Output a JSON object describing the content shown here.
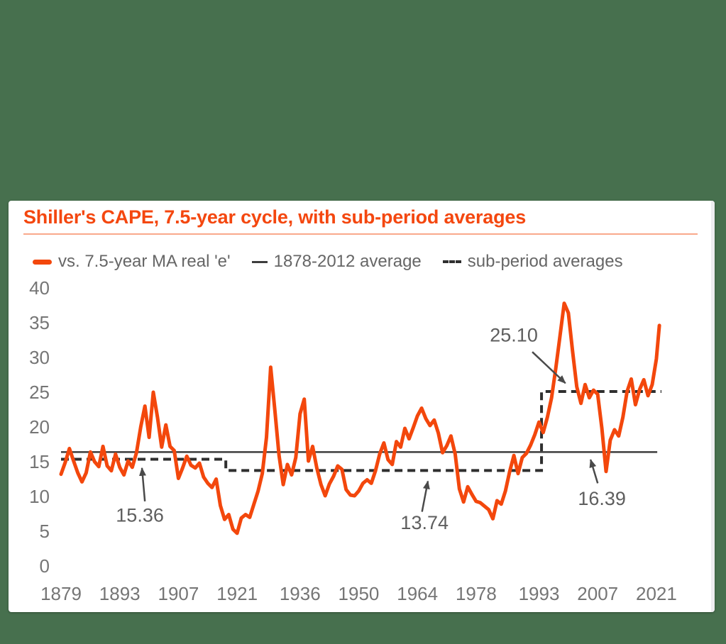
{
  "page": {
    "background_color": "#47704E",
    "card_background": "#FFFFFF",
    "scroll_strip_color": "#EDEDF0"
  },
  "header": {
    "title": "Shiller's CAPE, 7.5-year cycle, with sub-period averages",
    "title_color": "#F4470F",
    "underline_color": "#F9A98B"
  },
  "legend": {
    "text_color": "#666666",
    "items": [
      {
        "label": "vs. 7.5-year MA real 'e'",
        "swatch": "thick-orange-dash",
        "color": "#F3470C"
      },
      {
        "label": "1878-2012 average",
        "swatch": "thin-solid-dash",
        "color": "#3D3D3D"
      },
      {
        "label": "sub-period averages",
        "swatch": "dashed-dash",
        "color": "#2F2F2F"
      }
    ]
  },
  "chart_data": {
    "type": "line",
    "title": "Shiller's CAPE, 7.5-year cycle, with sub-period averages",
    "xlabel": "",
    "ylabel": "",
    "grid": false,
    "legend_position": "top",
    "ylim": [
      0,
      40
    ],
    "xlim": [
      1879,
      2022.3
    ],
    "y_ticks": [
      0,
      5,
      10,
      15,
      20,
      25,
      30,
      35,
      40
    ],
    "x_ticks": [
      1879,
      1893,
      1907,
      1921,
      1936,
      1950,
      1964,
      1978,
      1993,
      2007,
      2021
    ],
    "tick_color": "#757575",
    "series": [
      {
        "name": "vs. 7.5-year MA real 'e'",
        "style": "solid",
        "color": "#F3470C",
        "x": [
          1879,
          1880,
          1881,
          1882,
          1883,
          1884,
          1885,
          1886,
          1887,
          1888,
          1889,
          1890,
          1891,
          1892,
          1893,
          1894,
          1895,
          1896,
          1897,
          1898,
          1899,
          1900,
          1901,
          1902,
          1903,
          1904,
          1905,
          1906,
          1907,
          1908,
          1909,
          1910,
          1911,
          1912,
          1913,
          1914,
          1915,
          1916,
          1917,
          1918,
          1919,
          1920,
          1921,
          1922,
          1923,
          1924,
          1925,
          1926,
          1927,
          1928,
          1929,
          1930,
          1931,
          1932,
          1933,
          1934,
          1935,
          1936,
          1937,
          1938,
          1939,
          1940,
          1941,
          1942,
          1943,
          1944,
          1945,
          1946,
          1947,
          1948,
          1949,
          1950,
          1951,
          1952,
          1953,
          1954,
          1955,
          1956,
          1957,
          1958,
          1959,
          1960,
          1961,
          1962,
          1963,
          1964,
          1965,
          1966,
          1967,
          1968,
          1969,
          1970,
          1971,
          1972,
          1973,
          1974,
          1975,
          1976,
          1977,
          1978,
          1979,
          1980,
          1981,
          1982,
          1983,
          1984,
          1985,
          1986,
          1987,
          1988,
          1989,
          1990,
          1991,
          1992,
          1993,
          1994,
          1995,
          1996,
          1997,
          1998,
          1999,
          2000,
          2001,
          2002,
          2003,
          2004,
          2005,
          2006,
          2007,
          2008,
          2009,
          2010,
          2011,
          2012,
          2013,
          2014,
          2015,
          2016,
          2017,
          2018,
          2019,
          2020,
          2021,
          2021.7
        ],
        "values": [
          13.2,
          14.9,
          16.9,
          15.1,
          13.4,
          12.1,
          13.4,
          16.4,
          15.0,
          14.3,
          17.2,
          14.4,
          13.7,
          16.1,
          14.2,
          13.1,
          15.1,
          14.2,
          16.3,
          20.0,
          23.0,
          18.5,
          25.0,
          21.4,
          17.1,
          20.3,
          17.2,
          16.6,
          12.6,
          14.1,
          15.8,
          14.5,
          14.1,
          14.8,
          12.8,
          11.9,
          11.3,
          12.5,
          8.7,
          6.7,
          7.4,
          5.3,
          4.7,
          6.9,
          7.4,
          7.0,
          8.9,
          10.8,
          13.3,
          18.5,
          28.6,
          22.4,
          15.9,
          11.7,
          14.6,
          13.1,
          15.6,
          21.9,
          24.0,
          15.1,
          17.2,
          14.1,
          11.7,
          10.1,
          11.8,
          12.9,
          14.4,
          13.9,
          11.0,
          10.2,
          10.1,
          10.8,
          11.9,
          12.4,
          11.9,
          13.7,
          16.1,
          17.7,
          15.3,
          14.6,
          17.9,
          17.1,
          19.8,
          18.3,
          19.9,
          21.6,
          22.7,
          21.2,
          20.2,
          21.0,
          19.1,
          16.3,
          17.3,
          18.7,
          16.1,
          11.1,
          9.2,
          11.4,
          10.3,
          9.3,
          9.1,
          8.6,
          8.1,
          6.8,
          9.4,
          8.9,
          10.8,
          13.6,
          15.9,
          13.3,
          15.6,
          16.2,
          17.4,
          18.9,
          20.7,
          19.2,
          21.4,
          24.2,
          28.4,
          33.1,
          37.8,
          36.4,
          30.9,
          25.8,
          23.4,
          26.1,
          24.2,
          25.3,
          24.7,
          19.8,
          13.6,
          18.1,
          19.6,
          18.7,
          21.4,
          25.1,
          26.9,
          23.2,
          25.4,
          26.8,
          24.5,
          26.1,
          29.8,
          34.6
        ]
      },
      {
        "name": "1878-2012 average",
        "style": "solid",
        "color": "#3D3D3D",
        "value": 16.39,
        "year_start": 1879,
        "year_end": 2021.2
      },
      {
        "name": "sub-period averages",
        "style": "dashed",
        "color": "#2F2F2F",
        "steps": [
          {
            "from": 1879,
            "to": 1918.3,
            "value": 15.36
          },
          {
            "from": 1918.3,
            "to": 1993.6,
            "value": 13.74
          },
          {
            "from": 1993.6,
            "to": 2022.2,
            "value": 25.1
          }
        ]
      }
    ],
    "annotations": [
      {
        "label": "25.10",
        "color": "#5E5E5E",
        "text_year": 1987.0,
        "text_value": 33.2,
        "arrow_tail_year": 1991.4,
        "arrow_tail_value": 30.8,
        "arrow_head_year": 1999.3,
        "arrow_head_value": 26.3
      },
      {
        "label": "15.36",
        "color": "#5E5E5E",
        "text_year": 1897.8,
        "text_value": 7.3,
        "arrow_tail_year": 1899.0,
        "arrow_tail_value": 9.3,
        "arrow_head_year": 1898.3,
        "arrow_head_value": 14.1
      },
      {
        "label": "13.74",
        "color": "#5E5E5E",
        "text_year": 1965.7,
        "text_value": 6.2,
        "arrow_tail_year": 1965.1,
        "arrow_tail_value": 7.8,
        "arrow_head_year": 1966.5,
        "arrow_head_value": 12.2
      },
      {
        "label": "16.39",
        "color": "#5E5E5E",
        "text_year": 2008.0,
        "text_value": 9.7,
        "arrow_tail_year": 2007.0,
        "arrow_tail_value": 11.9,
        "arrow_head_year": 2005.3,
        "arrow_head_value": 15.3
      }
    ],
    "arrow_color": "#4A4A4A"
  }
}
